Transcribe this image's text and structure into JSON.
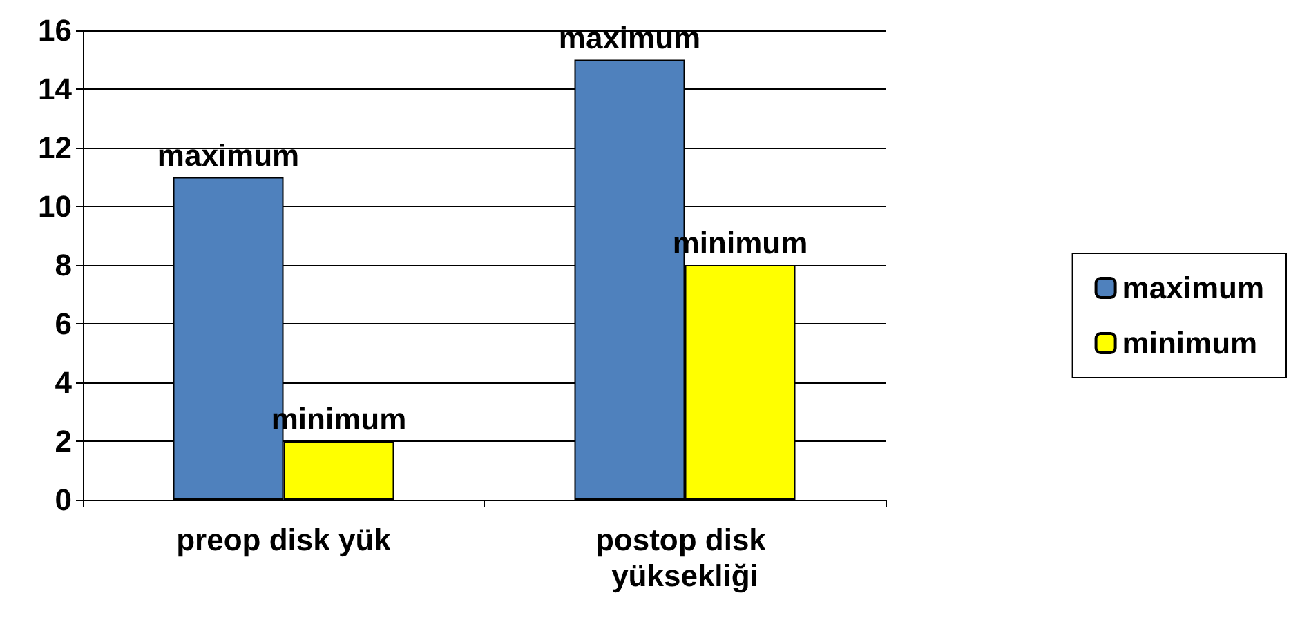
{
  "chart_data": {
    "type": "bar",
    "categories": [
      "preop disk yük",
      "postop disk yüksekliği"
    ],
    "series": [
      {
        "name": "maximum",
        "color": "#4f81bd",
        "values": [
          11,
          15
        ]
      },
      {
        "name": "minimum",
        "color": "#ffff00",
        "values": [
          2,
          8
        ]
      }
    ],
    "ylim": [
      0,
      16
    ],
    "yticks": [
      0,
      2,
      4,
      6,
      8,
      10,
      12,
      14,
      16
    ],
    "grid": "y",
    "legend": "right"
  }
}
